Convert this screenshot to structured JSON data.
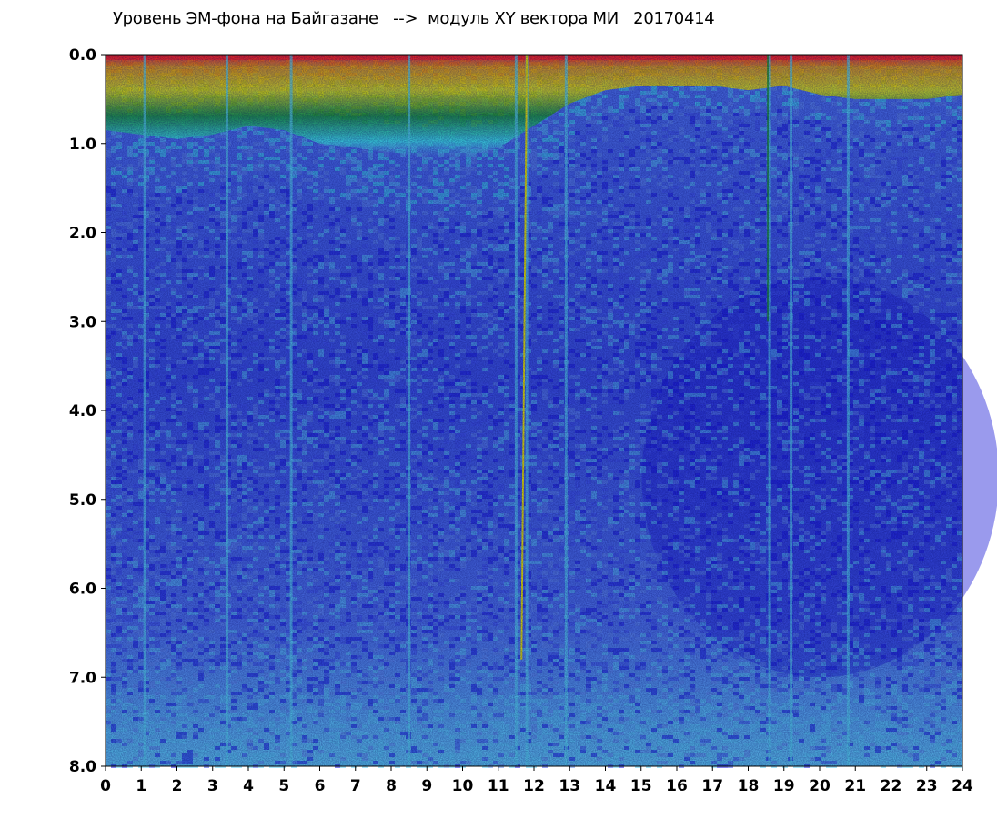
{
  "chart_data": {
    "type": "heatmap",
    "title": "Уровень ЭМ-фона на Байгазане   -->  модуль XY вектора МИ   20170414",
    "xlabel": "",
    "ylabel": "",
    "xlim": [
      0,
      24
    ],
    "ylim": [
      0,
      8
    ],
    "y_inverted": true,
    "x_ticks": [
      "0",
      "1",
      "2",
      "3",
      "4",
      "5",
      "6",
      "7",
      "8",
      "9",
      "10",
      "11",
      "12",
      "13",
      "14",
      "15",
      "16",
      "17",
      "18",
      "19",
      "20",
      "21",
      "22",
      "23",
      "24"
    ],
    "y_ticks": [
      "0.0",
      "1.0",
      "2.0",
      "3.0",
      "4.0",
      "5.0",
      "6.0",
      "7.0",
      "8.0"
    ],
    "colorscale": [
      "#1a1adc",
      "#3c50e6",
      "#5c8ae8",
      "#58c8ee",
      "#3ee8e8",
      "#1a9a2a",
      "#f0f000",
      "#f0a000",
      "#ff2020"
    ],
    "band_top_depth_by_hour": [
      0.85,
      0.9,
      0.95,
      0.9,
      0.8,
      0.85,
      1.0,
      1.05,
      1.1,
      1.15,
      1.15,
      1.05,
      0.8,
      0.55,
      0.4,
      0.35,
      0.35,
      0.35,
      0.4,
      0.35,
      0.45,
      0.5,
      0.5,
      0.5,
      0.45
    ],
    "vertical_streaks_hours": [
      1.1,
      3.4,
      5.2,
      8.5,
      11.5,
      11.8,
      12.9,
      18.6,
      19.2,
      20.8
    ],
    "dark_region": {
      "x": [
        14,
        24
      ],
      "y": [
        2.5,
        7.0
      ]
    }
  }
}
